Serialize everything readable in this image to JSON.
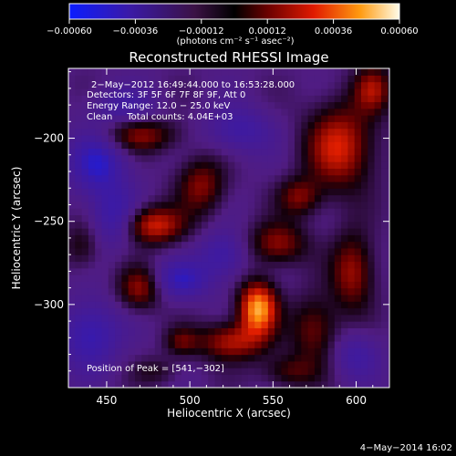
{
  "chart_data": {
    "type": "heatmap",
    "title": "Reconstructed RHESSI Image",
    "xlabel": "Heliocentric X (arcsec)",
    "ylabel": "Heliocentric Y (arcsec)",
    "xlim": [
      427,
      620
    ],
    "ylim": [
      -350,
      -158
    ],
    "x_ticks": [
      {
        "value": 450,
        "label": "450"
      },
      {
        "value": 500,
        "label": "500"
      },
      {
        "value": 550,
        "label": "550"
      },
      {
        "value": 600,
        "label": "600"
      }
    ],
    "y_ticks": [
      {
        "value": -200,
        "label": "−200"
      },
      {
        "value": -250,
        "label": "−250"
      },
      {
        "value": -300,
        "label": "−300"
      }
    ],
    "colorbar": {
      "range": [
        -0.0006,
        0.0006
      ],
      "tick_labels": [
        "−0.00060",
        "−0.00036",
        "−0.00012",
        "0.00012",
        "0.00036",
        "0.00060"
      ],
      "units": "(photons cm⁻² s⁻¹ asec⁻²)"
    },
    "annotations": {
      "time_range": "2−May−2012 16:49:44.000 to 16:53:28.000",
      "detectors": "Detectors: 3F 5F 6F 7F 8F 9F, Att 0",
      "energy": "Energy Range: 12.0 − 25.0 keV",
      "clean": "Clean     Total counts: 4.04E+03",
      "peak": "Position of Peak = [541,−302]"
    },
    "peak": {
      "x": 541,
      "y": -302
    },
    "sources": [
      {
        "x": 541,
        "y": -302,
        "amp": 0.0006,
        "sx": 8,
        "sy": 11
      },
      {
        "x": 525,
        "y": -322,
        "amp": 0.00035,
        "sx": 14,
        "sy": 8
      },
      {
        "x": 495,
        "y": -322,
        "amp": 0.0002,
        "sx": 7,
        "sy": 6
      },
      {
        "x": 478,
        "y": -252,
        "amp": 0.0004,
        "sx": 13,
        "sy": 8
      },
      {
        "x": 470,
        "y": -290,
        "amp": 0.0003,
        "sx": 9,
        "sy": 9
      },
      {
        "x": 507,
        "y": -228,
        "amp": 0.00028,
        "sx": 10,
        "sy": 12
      },
      {
        "x": 553,
        "y": -263,
        "amp": 0.0003,
        "sx": 12,
        "sy": 9
      },
      {
        "x": 566,
        "y": -235,
        "amp": 0.00026,
        "sx": 9,
        "sy": 8
      },
      {
        "x": 470,
        "y": -198,
        "amp": 0.00028,
        "sx": 16,
        "sy": 7
      },
      {
        "x": 590,
        "y": -205,
        "amp": 0.0004,
        "sx": 14,
        "sy": 18
      },
      {
        "x": 598,
        "y": -280,
        "amp": 0.00032,
        "sx": 9,
        "sy": 16
      },
      {
        "x": 575,
        "y": -315,
        "amp": 0.00026,
        "sx": 10,
        "sy": 14
      },
      {
        "x": 610,
        "y": -170,
        "amp": 0.0003,
        "sx": 8,
        "sy": 10
      },
      {
        "x": 435,
        "y": -265,
        "amp": 0.00016,
        "sx": 8,
        "sy": 10
      },
      {
        "x": 560,
        "y": -340,
        "amp": 0.0002,
        "sx": 12,
        "sy": 7
      },
      {
        "x": 480,
        "y": -340,
        "amp": 0.00012,
        "sx": 10,
        "sy": 6
      },
      {
        "x": 445,
        "y": -215,
        "amp": -0.0003,
        "sx": 12,
        "sy": 14
      },
      {
        "x": 440,
        "y": -318,
        "amp": -0.00028,
        "sx": 12,
        "sy": 14
      },
      {
        "x": 520,
        "y": -270,
        "amp": -0.00022,
        "sx": 10,
        "sy": 10
      },
      {
        "x": 495,
        "y": -285,
        "amp": -0.00026,
        "sx": 12,
        "sy": 8
      },
      {
        "x": 455,
        "y": -248,
        "amp": -0.00024,
        "sx": 10,
        "sy": 12
      },
      {
        "x": 530,
        "y": -195,
        "amp": -0.0002,
        "sx": 14,
        "sy": 10
      },
      {
        "x": 600,
        "y": -330,
        "amp": -0.00018,
        "sx": 10,
        "sy": 10
      },
      {
        "x": 460,
        "y": -180,
        "amp": -0.00016,
        "sx": 14,
        "sy": 8
      }
    ],
    "grid": false
  },
  "footer": {
    "date": "4−May−2014 16:02"
  }
}
